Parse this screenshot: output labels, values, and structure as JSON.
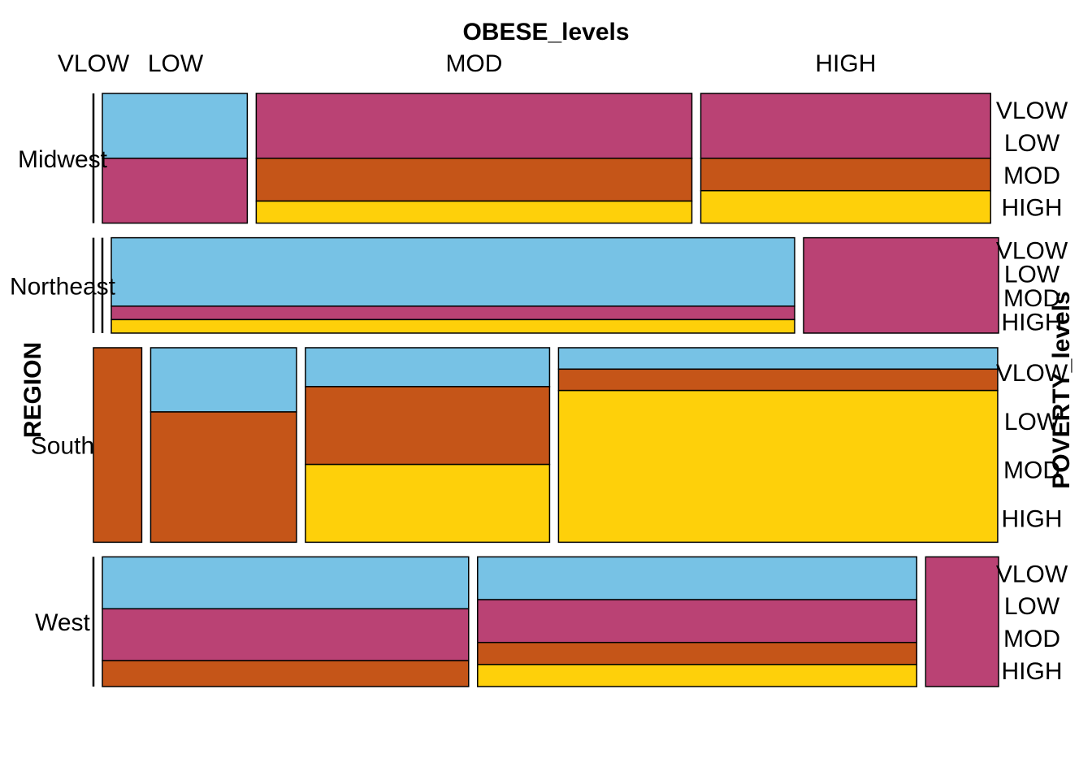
{
  "chart_data": {
    "type": "mosaic",
    "title": "OBESE_levels",
    "row_var": "REGION",
    "stack_var": "POVERTY_levels",
    "categories_top": [
      "VLOW",
      "LOW",
      "MOD",
      "HIGH"
    ],
    "stack_levels": [
      "VLOW",
      "LOW",
      "MOD",
      "HIGH"
    ],
    "colors": {
      "VLOW": "#77C2E5",
      "LOW": "#BA4274",
      "MOD": "#C55518",
      "HIGH": "#FED00A"
    },
    "rows": [
      {
        "label": "Midwest",
        "weight": 0.17,
        "cells": [
          {
            "obese": "VLOW",
            "width": 0.0,
            "stack": [
              0,
              0,
              0,
              0
            ]
          },
          {
            "obese": "LOW",
            "width": 0.165,
            "stack": [
              0.5,
              0.5,
              0,
              0
            ]
          },
          {
            "obese": "MOD",
            "width": 0.496,
            "stack": [
              0,
              0.5,
              0.33,
              0.17
            ]
          },
          {
            "obese": "HIGH",
            "width": 0.33,
            "stack": [
              0,
              0.5,
              0.25,
              0.25
            ]
          }
        ]
      },
      {
        "label": "Northeast",
        "weight": 0.125,
        "cells": [
          {
            "obese": "VLOW",
            "width": 0.0,
            "stack": [
              0,
              0,
              0,
              0
            ]
          },
          {
            "obese": "LOW",
            "width": 0.0,
            "stack": [
              0,
              0,
              0,
              0
            ]
          },
          {
            "obese": "MOD",
            "width": 0.778,
            "stack": [
              0.71,
              0.14,
              0,
              0.14
            ]
          },
          {
            "obese": "HIGH",
            "width": 0.222,
            "stack": [
              0,
              1.0,
              0,
              0
            ]
          }
        ]
      },
      {
        "label": "South",
        "weight": 0.255,
        "cells": [
          {
            "obese": "VLOW",
            "width": 0.055,
            "stack": [
              0,
              0,
              1.0,
              0
            ]
          },
          {
            "obese": "LOW",
            "width": 0.166,
            "stack": [
              0.33,
              0,
              0.67,
              0
            ]
          },
          {
            "obese": "MOD",
            "width": 0.278,
            "stack": [
              0.2,
              0,
              0.4,
              0.4
            ]
          },
          {
            "obese": "HIGH",
            "width": 0.5,
            "stack": [
              0.11,
              0,
              0.11,
              0.78
            ]
          }
        ]
      },
      {
        "label": "West",
        "weight": 0.17,
        "cells": [
          {
            "obese": "VLOW",
            "width": 0.0,
            "stack": [
              0,
              0,
              0,
              0
            ]
          },
          {
            "obese": "LOW",
            "width": 0.417,
            "stack": [
              0.4,
              0.4,
              0.2,
              0
            ]
          },
          {
            "obese": "MOD",
            "width": 0.5,
            "stack": [
              0.33,
              0.33,
              0.17,
              0.17
            ]
          },
          {
            "obese": "HIGH",
            "width": 0.083,
            "stack": [
              0,
              1.0,
              0,
              0
            ]
          }
        ]
      }
    ]
  }
}
